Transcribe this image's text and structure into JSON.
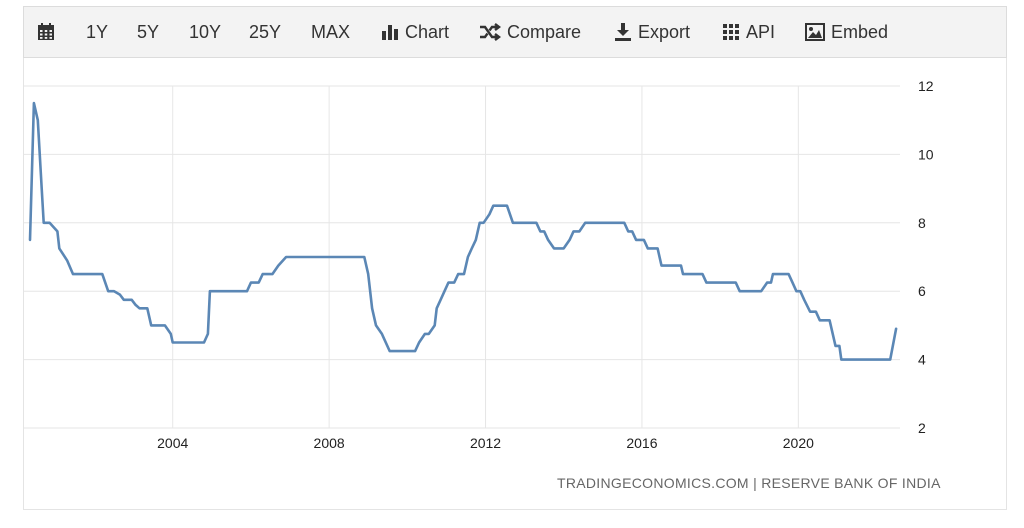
{
  "toolbar": {
    "items": [
      {
        "label": "",
        "icon": "calendar-icon"
      },
      {
        "label": "1Y"
      },
      {
        "label": "5Y"
      },
      {
        "label": "10Y"
      },
      {
        "label": "25Y"
      },
      {
        "label": "MAX"
      },
      {
        "label": "Chart",
        "icon": "bar-chart-icon"
      },
      {
        "label": "Compare",
        "icon": "shuffle-icon"
      },
      {
        "label": "Export",
        "icon": "download-icon"
      },
      {
        "label": "API",
        "icon": "grid-icon"
      },
      {
        "label": "Embed",
        "icon": "image-icon"
      }
    ]
  },
  "source_text": "TRADINGECONOMICS.COM | RESERVE BANK OF INDIA",
  "colors": {
    "line": "#5b87b5",
    "grid": "#e6e6e6",
    "toolbar_bg": "#f3f3f3",
    "text": "#333333"
  },
  "chart_data": {
    "type": "line",
    "title": "",
    "xlabel": "",
    "ylabel": "",
    "xlim": [
      2000.35,
      2022.6
    ],
    "ylim": [
      2,
      12
    ],
    "x_ticks": [
      2004,
      2008,
      2012,
      2016,
      2020
    ],
    "y_ticks": [
      2,
      4,
      6,
      8,
      10,
      12
    ],
    "grid": true,
    "y_axis_side": "right",
    "series": [
      {
        "values": [
          [
            2000.35,
            7.5
          ],
          [
            2000.45,
            11.5
          ],
          [
            2000.55,
            11.0
          ],
          [
            2000.65,
            9.0
          ],
          [
            2000.7,
            8.0
          ],
          [
            2000.85,
            8.0
          ],
          [
            2001.05,
            7.75
          ],
          [
            2001.1,
            7.25
          ],
          [
            2001.3,
            6.9
          ],
          [
            2001.45,
            6.5
          ],
          [
            2002.0,
            6.5
          ],
          [
            2002.2,
            6.5
          ],
          [
            2002.35,
            6.0
          ],
          [
            2002.5,
            6.0
          ],
          [
            2002.65,
            5.9
          ],
          [
            2002.75,
            5.75
          ],
          [
            2002.95,
            5.75
          ],
          [
            2003.05,
            5.6
          ],
          [
            2003.15,
            5.5
          ],
          [
            2003.35,
            5.5
          ],
          [
            2003.45,
            5.0
          ],
          [
            2003.8,
            5.0
          ],
          [
            2003.95,
            4.75
          ],
          [
            2004.0,
            4.5
          ],
          [
            2004.8,
            4.5
          ],
          [
            2004.9,
            4.75
          ],
          [
            2004.95,
            6.0
          ],
          [
            2005.9,
            6.0
          ],
          [
            2006.0,
            6.25
          ],
          [
            2006.2,
            6.25
          ],
          [
            2006.3,
            6.5
          ],
          [
            2006.55,
            6.5
          ],
          [
            2006.7,
            6.75
          ],
          [
            2006.9,
            7.0
          ],
          [
            2008.9,
            7.0
          ],
          [
            2009.0,
            6.5
          ],
          [
            2009.1,
            5.5
          ],
          [
            2009.2,
            5.0
          ],
          [
            2009.35,
            4.75
          ],
          [
            2009.55,
            4.25
          ],
          [
            2010.2,
            4.25
          ],
          [
            2010.3,
            4.5
          ],
          [
            2010.45,
            4.75
          ],
          [
            2010.55,
            4.75
          ],
          [
            2010.7,
            5.0
          ],
          [
            2010.75,
            5.5
          ],
          [
            2010.85,
            5.75
          ],
          [
            2010.95,
            6.0
          ],
          [
            2011.05,
            6.25
          ],
          [
            2011.2,
            6.25
          ],
          [
            2011.3,
            6.5
          ],
          [
            2011.45,
            6.5
          ],
          [
            2011.55,
            7.0
          ],
          [
            2011.65,
            7.25
          ],
          [
            2011.75,
            7.5
          ],
          [
            2011.85,
            8.0
          ],
          [
            2011.95,
            8.0
          ],
          [
            2012.1,
            8.25
          ],
          [
            2012.2,
            8.5
          ],
          [
            2012.55,
            8.5
          ],
          [
            2012.7,
            8.0
          ],
          [
            2013.3,
            8.0
          ],
          [
            2013.4,
            7.75
          ],
          [
            2013.5,
            7.75
          ],
          [
            2013.6,
            7.5
          ],
          [
            2013.75,
            7.25
          ],
          [
            2014.0,
            7.25
          ],
          [
            2014.15,
            7.5
          ],
          [
            2014.25,
            7.75
          ],
          [
            2014.4,
            7.75
          ],
          [
            2014.55,
            8.0
          ],
          [
            2015.55,
            8.0
          ],
          [
            2015.65,
            7.75
          ],
          [
            2015.75,
            7.75
          ],
          [
            2015.85,
            7.5
          ],
          [
            2016.05,
            7.5
          ],
          [
            2016.15,
            7.25
          ],
          [
            2016.4,
            7.25
          ],
          [
            2016.5,
            6.75
          ],
          [
            2017.0,
            6.75
          ],
          [
            2017.05,
            6.5
          ],
          [
            2017.55,
            6.5
          ],
          [
            2017.65,
            6.25
          ],
          [
            2018.4,
            6.25
          ],
          [
            2018.5,
            6.0
          ],
          [
            2019.05,
            6.0
          ],
          [
            2019.2,
            6.25
          ],
          [
            2019.3,
            6.25
          ],
          [
            2019.35,
            6.5
          ],
          [
            2019.75,
            6.5
          ],
          [
            2019.85,
            6.25
          ],
          [
            2019.95,
            6.0
          ],
          [
            2020.05,
            6.0
          ],
          [
            2020.15,
            5.75
          ],
          [
            2020.3,
            5.4
          ],
          [
            2020.45,
            5.4
          ],
          [
            2020.55,
            5.15
          ],
          [
            2020.8,
            5.15
          ],
          [
            2020.95,
            4.4
          ],
          [
            2021.05,
            4.4
          ],
          [
            2021.1,
            4.0
          ],
          [
            2022.35,
            4.0
          ],
          [
            2022.5,
            4.9
          ]
        ]
      }
    ]
  }
}
